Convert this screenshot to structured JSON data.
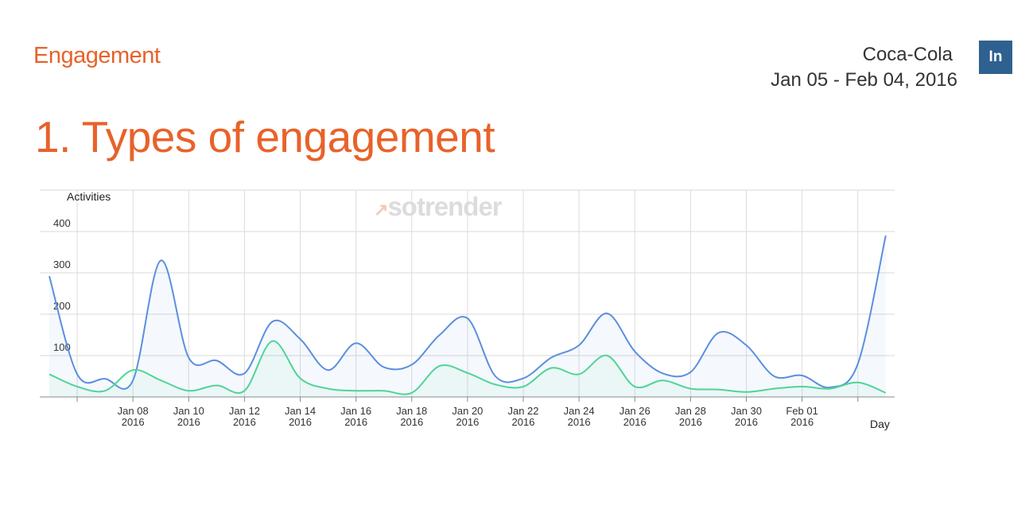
{
  "header": {
    "section": "Engagement",
    "brand": "Coca-Cola",
    "date_range": "Jan 05 - Feb 04, 2016",
    "network_badge": "In"
  },
  "page_title": "1. Types of engagement",
  "watermark": "sotrender",
  "chart_data": {
    "type": "area",
    "ylabel": "Activities",
    "xlabel": "Day",
    "ylim": [
      0,
      500
    ],
    "yticks": [
      100,
      200,
      300,
      400
    ],
    "x_tick_labels": [
      [
        "Jan 08",
        "2016"
      ],
      [
        "Jan 10",
        "2016"
      ],
      [
        "Jan 12",
        "2016"
      ],
      [
        "Jan 14",
        "2016"
      ],
      [
        "Jan 16",
        "2016"
      ],
      [
        "Jan 18",
        "2016"
      ],
      [
        "Jan 20",
        "2016"
      ],
      [
        "Jan 22",
        "2016"
      ],
      [
        "Jan 24",
        "2016"
      ],
      [
        "Jan 26",
        "2016"
      ],
      [
        "Jan 28",
        "2016"
      ],
      [
        "Jan 30",
        "2016"
      ],
      [
        "Feb 01",
        "2016"
      ]
    ],
    "grid": true,
    "x": [
      "2016-01-05",
      "2016-01-06",
      "2016-01-07",
      "2016-01-08",
      "2016-01-09",
      "2016-01-10",
      "2016-01-11",
      "2016-01-12",
      "2016-01-13",
      "2016-01-14",
      "2016-01-15",
      "2016-01-16",
      "2016-01-17",
      "2016-01-18",
      "2016-01-19",
      "2016-01-20",
      "2016-01-21",
      "2016-01-22",
      "2016-01-23",
      "2016-01-24",
      "2016-01-25",
      "2016-01-26",
      "2016-01-27",
      "2016-01-28",
      "2016-01-29",
      "2016-01-30",
      "2016-01-31",
      "2016-02-01",
      "2016-02-02",
      "2016-02-03",
      "2016-02-04"
    ],
    "series": [
      {
        "color": "#5b8fde",
        "values": [
          292,
          55,
          44,
          40,
          330,
          95,
          88,
          57,
          182,
          140,
          65,
          130,
          72,
          78,
          150,
          190,
          50,
          45,
          95,
          125,
          202,
          110,
          57,
          60,
          155,
          125,
          50,
          52,
          23,
          80,
          390
        ]
      },
      {
        "color": "#4fd596",
        "values": [
          55,
          25,
          15,
          65,
          40,
          15,
          28,
          15,
          135,
          45,
          20,
          15,
          15,
          10,
          75,
          58,
          30,
          25,
          70,
          55,
          100,
          25,
          40,
          20,
          18,
          12,
          20,
          25,
          20,
          35,
          10
        ]
      }
    ]
  }
}
